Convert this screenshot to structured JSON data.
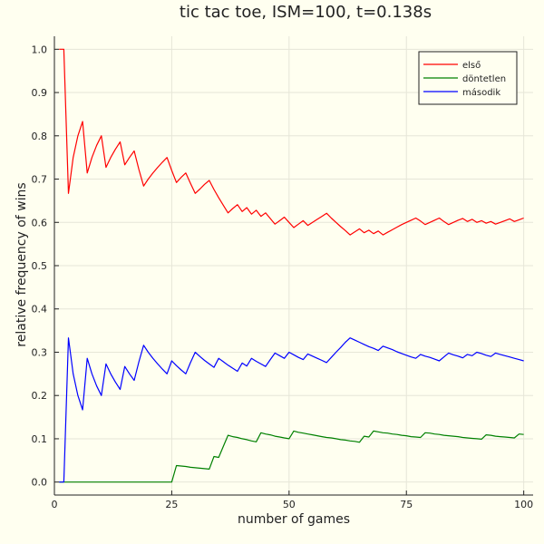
{
  "chart_data": {
    "type": "line",
    "title": "tic tac toe, ISM=100, t=0.138s",
    "xlabel": "number of games",
    "ylabel": "relative frequency of wins",
    "xlim": [
      0,
      102
    ],
    "ylim": [
      -0.03,
      1.03
    ],
    "xticks": [
      0,
      25,
      50,
      75,
      100
    ],
    "yticks": [
      0.0,
      0.1,
      0.2,
      0.3,
      0.4,
      0.5,
      0.6,
      0.7,
      0.8,
      0.9,
      1.0
    ],
    "grid": true,
    "legend_position": "top-right",
    "series": [
      {
        "name": "első",
        "color": "#ff0000",
        "points": [
          [
            1,
            1.0
          ],
          [
            2,
            1.0
          ],
          [
            3,
            0.667
          ],
          [
            4,
            0.75
          ],
          [
            5,
            0.8
          ],
          [
            6,
            0.833
          ],
          [
            7,
            0.714
          ],
          [
            8,
            0.75
          ],
          [
            9,
            0.778
          ],
          [
            10,
            0.8
          ],
          [
            11,
            0.727
          ],
          [
            12,
            0.75
          ],
          [
            13,
            0.769
          ],
          [
            14,
            0.786
          ],
          [
            15,
            0.733
          ],
          [
            16,
            0.75
          ],
          [
            17,
            0.765
          ],
          [
            18,
            0.722
          ],
          [
            19,
            0.684
          ],
          [
            20,
            0.7
          ],
          [
            21,
            0.714
          ],
          [
            22,
            0.727
          ],
          [
            23,
            0.739
          ],
          [
            24,
            0.75
          ],
          [
            25,
            0.72
          ],
          [
            26,
            0.692
          ],
          [
            27,
            0.704
          ],
          [
            28,
            0.714
          ],
          [
            29,
            0.69
          ],
          [
            30,
            0.667
          ],
          [
            31,
            0.677
          ],
          [
            32,
            0.688
          ],
          [
            33,
            0.697
          ],
          [
            34,
            0.676
          ],
          [
            35,
            0.657
          ],
          [
            36,
            0.639
          ],
          [
            37,
            0.622
          ],
          [
            38,
            0.632
          ],
          [
            39,
            0.641
          ],
          [
            40,
            0.625
          ],
          [
            41,
            0.634
          ],
          [
            42,
            0.619
          ],
          [
            43,
            0.628
          ],
          [
            44,
            0.614
          ],
          [
            45,
            0.622
          ],
          [
            46,
            0.609
          ],
          [
            47,
            0.596
          ],
          [
            48,
            0.604
          ],
          [
            49,
            0.612
          ],
          [
            50,
            0.6
          ],
          [
            51,
            0.588
          ],
          [
            52,
            0.596
          ],
          [
            53,
            0.604
          ],
          [
            54,
            0.593
          ],
          [
            55,
            0.6
          ],
          [
            56,
            0.607
          ],
          [
            57,
            0.614
          ],
          [
            58,
            0.621
          ],
          [
            59,
            0.61
          ],
          [
            60,
            0.6
          ],
          [
            61,
            0.59
          ],
          [
            62,
            0.581
          ],
          [
            63,
            0.571
          ],
          [
            64,
            0.578
          ],
          [
            65,
            0.585
          ],
          [
            66,
            0.576
          ],
          [
            67,
            0.582
          ],
          [
            68,
            0.574
          ],
          [
            69,
            0.58
          ],
          [
            70,
            0.571
          ],
          [
            71,
            0.577
          ],
          [
            72,
            0.583
          ],
          [
            73,
            0.589
          ],
          [
            74,
            0.595
          ],
          [
            75,
            0.6
          ],
          [
            76,
            0.605
          ],
          [
            77,
            0.61
          ],
          [
            78,
            0.603
          ],
          [
            79,
            0.595
          ],
          [
            80,
            0.6
          ],
          [
            81,
            0.605
          ],
          [
            82,
            0.61
          ],
          [
            83,
            0.602
          ],
          [
            84,
            0.595
          ],
          [
            85,
            0.6
          ],
          [
            86,
            0.605
          ],
          [
            87,
            0.609
          ],
          [
            88,
            0.602
          ],
          [
            89,
            0.607
          ],
          [
            90,
            0.6
          ],
          [
            91,
            0.604
          ],
          [
            92,
            0.598
          ],
          [
            93,
            0.602
          ],
          [
            94,
            0.596
          ],
          [
            95,
            0.6
          ],
          [
            96,
            0.604
          ],
          [
            97,
            0.608
          ],
          [
            98,
            0.602
          ],
          [
            99,
            0.606
          ],
          [
            100,
            0.61
          ]
        ]
      },
      {
        "name": "döntetlen",
        "color": "#008000",
        "points": [
          [
            1,
            0.0
          ],
          [
            25,
            0.0
          ],
          [
            26,
            0.038
          ],
          [
            27,
            0.037
          ],
          [
            28,
            0.036
          ],
          [
            29,
            0.034
          ],
          [
            30,
            0.033
          ],
          [
            31,
            0.032
          ],
          [
            32,
            0.031
          ],
          [
            33,
            0.03
          ],
          [
            34,
            0.059
          ],
          [
            35,
            0.057
          ],
          [
            36,
            0.083
          ],
          [
            37,
            0.108
          ],
          [
            38,
            0.105
          ],
          [
            39,
            0.103
          ],
          [
            40,
            0.1
          ],
          [
            41,
            0.098
          ],
          [
            42,
            0.095
          ],
          [
            43,
            0.093
          ],
          [
            44,
            0.114
          ],
          [
            45,
            0.111
          ],
          [
            46,
            0.109
          ],
          [
            47,
            0.106
          ],
          [
            48,
            0.104
          ],
          [
            49,
            0.102
          ],
          [
            50,
            0.1
          ],
          [
            51,
            0.118
          ],
          [
            52,
            0.115
          ],
          [
            53,
            0.113
          ],
          [
            54,
            0.111
          ],
          [
            55,
            0.109
          ],
          [
            56,
            0.107
          ],
          [
            57,
            0.105
          ],
          [
            58,
            0.103
          ],
          [
            59,
            0.102
          ],
          [
            60,
            0.1
          ],
          [
            61,
            0.098
          ],
          [
            62,
            0.097
          ],
          [
            63,
            0.095
          ],
          [
            64,
            0.094
          ],
          [
            65,
            0.092
          ],
          [
            66,
            0.106
          ],
          [
            67,
            0.104
          ],
          [
            68,
            0.118
          ],
          [
            69,
            0.116
          ],
          [
            70,
            0.114
          ],
          [
            71,
            0.113
          ],
          [
            72,
            0.111
          ],
          [
            73,
            0.11
          ],
          [
            74,
            0.108
          ],
          [
            75,
            0.107
          ],
          [
            76,
            0.105
          ],
          [
            77,
            0.104
          ],
          [
            78,
            0.103
          ],
          [
            79,
            0.114
          ],
          [
            80,
            0.113
          ],
          [
            81,
            0.111
          ],
          [
            82,
            0.11
          ],
          [
            83,
            0.108
          ],
          [
            84,
            0.107
          ],
          [
            85,
            0.106
          ],
          [
            86,
            0.105
          ],
          [
            87,
            0.103
          ],
          [
            88,
            0.102
          ],
          [
            89,
            0.101
          ],
          [
            90,
            0.1
          ],
          [
            91,
            0.099
          ],
          [
            92,
            0.109
          ],
          [
            93,
            0.108
          ],
          [
            94,
            0.106
          ],
          [
            95,
            0.105
          ],
          [
            96,
            0.104
          ],
          [
            97,
            0.103
          ],
          [
            98,
            0.102
          ],
          [
            99,
            0.111
          ],
          [
            100,
            0.11
          ]
        ]
      },
      {
        "name": "második",
        "color": "#0000ff",
        "points": [
          [
            1,
            0.0
          ],
          [
            2,
            0.0
          ],
          [
            3,
            0.333
          ],
          [
            4,
            0.25
          ],
          [
            5,
            0.2
          ],
          [
            6,
            0.167
          ],
          [
            7,
            0.286
          ],
          [
            8,
            0.25
          ],
          [
            9,
            0.222
          ],
          [
            10,
            0.2
          ],
          [
            11,
            0.273
          ],
          [
            12,
            0.25
          ],
          [
            13,
            0.231
          ],
          [
            14,
            0.214
          ],
          [
            15,
            0.267
          ],
          [
            16,
            0.25
          ],
          [
            17,
            0.235
          ],
          [
            18,
            0.278
          ],
          [
            19,
            0.316
          ],
          [
            20,
            0.3
          ],
          [
            21,
            0.286
          ],
          [
            22,
            0.273
          ],
          [
            23,
            0.261
          ],
          [
            24,
            0.25
          ],
          [
            25,
            0.28
          ],
          [
            26,
            0.269
          ],
          [
            27,
            0.259
          ],
          [
            28,
            0.25
          ],
          [
            29,
            0.276
          ],
          [
            30,
            0.3
          ],
          [
            31,
            0.29
          ],
          [
            32,
            0.281
          ],
          [
            33,
            0.273
          ],
          [
            34,
            0.265
          ],
          [
            35,
            0.286
          ],
          [
            36,
            0.278
          ],
          [
            37,
            0.27
          ],
          [
            38,
            0.263
          ],
          [
            39,
            0.256
          ],
          [
            40,
            0.275
          ],
          [
            41,
            0.268
          ],
          [
            42,
            0.286
          ],
          [
            43,
            0.279
          ],
          [
            44,
            0.273
          ],
          [
            45,
            0.267
          ],
          [
            46,
            0.283
          ],
          [
            47,
            0.298
          ],
          [
            48,
            0.292
          ],
          [
            49,
            0.286
          ],
          [
            50,
            0.3
          ],
          [
            51,
            0.294
          ],
          [
            52,
            0.288
          ],
          [
            53,
            0.283
          ],
          [
            54,
            0.296
          ],
          [
            55,
            0.291
          ],
          [
            56,
            0.286
          ],
          [
            57,
            0.281
          ],
          [
            58,
            0.276
          ],
          [
            59,
            0.288
          ],
          [
            60,
            0.3
          ],
          [
            61,
            0.311
          ],
          [
            62,
            0.323
          ],
          [
            63,
            0.333
          ],
          [
            64,
            0.328
          ],
          [
            65,
            0.323
          ],
          [
            66,
            0.318
          ],
          [
            67,
            0.313
          ],
          [
            68,
            0.309
          ],
          [
            69,
            0.304
          ],
          [
            70,
            0.314
          ],
          [
            71,
            0.31
          ],
          [
            72,
            0.306
          ],
          [
            73,
            0.301
          ],
          [
            74,
            0.297
          ],
          [
            75,
            0.293
          ],
          [
            76,
            0.289
          ],
          [
            77,
            0.286
          ],
          [
            78,
            0.295
          ],
          [
            79,
            0.291
          ],
          [
            80,
            0.288
          ],
          [
            81,
            0.284
          ],
          [
            82,
            0.28
          ],
          [
            83,
            0.289
          ],
          [
            84,
            0.298
          ],
          [
            85,
            0.294
          ],
          [
            86,
            0.291
          ],
          [
            87,
            0.287
          ],
          [
            88,
            0.295
          ],
          [
            89,
            0.292
          ],
          [
            90,
            0.3
          ],
          [
            91,
            0.297
          ],
          [
            92,
            0.293
          ],
          [
            93,
            0.29
          ],
          [
            94,
            0.298
          ],
          [
            95,
            0.295
          ],
          [
            96,
            0.292
          ],
          [
            97,
            0.289
          ],
          [
            98,
            0.286
          ],
          [
            99,
            0.283
          ],
          [
            100,
            0.28
          ]
        ]
      }
    ]
  }
}
